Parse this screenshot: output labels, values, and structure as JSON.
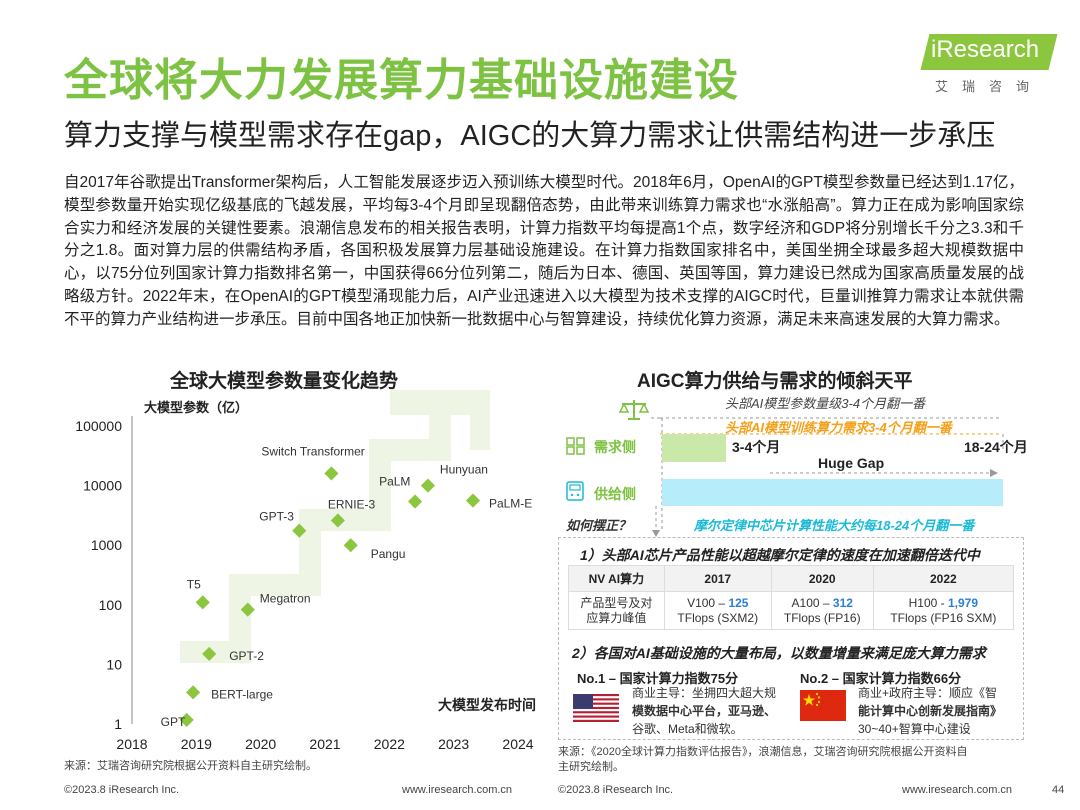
{
  "header": {
    "title": "全球将大力发展算力基础设施建设",
    "subtitle": "算力支撑与模型需求存在gap，AIGC的大算力需求让供需结构进一步承压",
    "logo_text": "iResearch",
    "logo_sub": "艾瑞咨询"
  },
  "body_text": "自2017年谷歌提出Transformer架构后，人工智能发展逐步迈入预训练大模型时代。2018年6月，OpenAI的GPT模型参数量已经达到1.17亿，模型参数量开始实现亿级基底的飞越发展，平均每3-4个月即呈现翻倍态势，由此带来训练算力需求也“水涨船高”。算力正在成为影响国家综合实力和经济发展的关键性要素。浪潮信息发布的相关报告表明，计算力指数平均每提高1个点，数字经济和GDP将分别增长千分之3.3和千分之1.8。面对算力层的供需结构矛盾，各国积极发展算力层基础设施建设。在计算力指数国家排名中，美国坐拥全球最多超大规模数据中心，以75分位列国家计算力指数排名第一，中国获得66分位列第二，随后为日本、德国、英国等国，算力建设已然成为国家高质量发展的战略级方针。2022年末，在OpenAI的GPT模型涌现能力后，AI产业迅速进入以大模型为技术支撑的AIGC时代，巨量训推算力需求让本就供需不平的算力产业结构进一步承压。目前中国各地正加快新一批数据中心与智算建设，持续优化算力资源，满足未来高速发展的大算力需求。",
  "left_chart": {
    "title": "全球大模型参数量变化趋势"
  },
  "chart_data": [
    {
      "type": "scatter",
      "title": "全球大模型参数量变化趋势",
      "ylabel": "大模型参数（亿）",
      "xlabel": "大模型发布时间",
      "y_scale": "log",
      "ylim": [
        1,
        100000
      ],
      "xlim": [
        2018,
        2024
      ],
      "x_ticks": [
        "2018",
        "2019",
        "2020",
        "2021",
        "2022",
        "2023",
        "2024"
      ],
      "y_ticks": [
        "1",
        "10",
        "100",
        "1000",
        "10000",
        "100000"
      ],
      "point_color": "#8cc63f",
      "points": [
        {
          "label": "GPT",
          "x": 2018.85,
          "y": 1.17
        },
        {
          "label": "BERT-large",
          "x": 2018.95,
          "y": 3.4
        },
        {
          "label": "T5",
          "x": 2019.1,
          "y": 110
        },
        {
          "label": "GPT-2",
          "x": 2019.2,
          "y": 15
        },
        {
          "label": "Megatron",
          "x": 2019.8,
          "y": 83
        },
        {
          "label": "GPT-3",
          "x": 2020.6,
          "y": 1750
        },
        {
          "label": "Switch Transformer",
          "x": 2021.1,
          "y": 16000
        },
        {
          "label": "ERNIE-3",
          "x": 2021.2,
          "y": 2600
        },
        {
          "label": "Pangu",
          "x": 2021.4,
          "y": 1000
        },
        {
          "label": "PaLM",
          "x": 2022.4,
          "y": 5400
        },
        {
          "label": "Hunyuan",
          "x": 2022.6,
          "y": 10000
        },
        {
          "label": "PaLM-E",
          "x": 2023.3,
          "y": 5620
        }
      ]
    },
    {
      "type": "bar",
      "title": "AIGC算力供给与需求的倾斜天平",
      "categories": [
        "需求侧",
        "供给侧"
      ],
      "annotations": [
        "3-4个月",
        "Huge Gap",
        "18-24个月"
      ]
    }
  ],
  "right_panel": {
    "title": "AIGC算力供给与需求的倾斜天平",
    "note_model_params": "头部AI模型参数量级3-4个月翻一番",
    "note_training_demand": "头部AI模型训练算力需求3-4个月翻一番",
    "demand_label": "需求侧",
    "supply_label": "供给侧",
    "demand_period": "3-4个月",
    "gap_label": "Huge Gap",
    "supply_period": "18-24个月",
    "question": "如何摆正？",
    "moore_note": "摩尔定律中芯片计算性能大约每18-24个月翻一番",
    "section1": "1）头部AI芯片产品性能以超越摩尔定律的速度在加速翻倍迭代中",
    "table": {
      "headers": [
        "NV AI算力",
        "2017",
        "2020",
        "2022"
      ],
      "row_label_1": "产品型号及对",
      "row_label_2": "应算力峰值",
      "cells": [
        {
          "model": "V100 – ",
          "value": "125",
          "unit": "TFlops (SXM2)"
        },
        {
          "model": "A100 – ",
          "value": "312",
          "unit": "TFlops (FP16)"
        },
        {
          "model": "H100 - ",
          "value": "1,979",
          "unit": "TFlops (FP16 SXM)"
        }
      ]
    },
    "section2": "2）各国对AI基础设施的大量布局，以数量增量来满足庞大算力需求",
    "usa": {
      "head": "No.1 – 国家计算力指数75分",
      "line1": "商业主导：坐拥四大超大规",
      "line2": "模数据中心平台，亚马逊、",
      "line3": "谷歌、Meta和微软。"
    },
    "china": {
      "head": "No.2 – 国家计算力指数66分",
      "line1": "商业+政府主导：顺应《智",
      "line2": "能计算中心创新发展指南》",
      "line3": "30~40+智算中心建设"
    }
  },
  "sources": {
    "left": "来源：艾瑞咨询研究院根据公开资料自主研究绘制。",
    "right_1": "来源：《2020全球计算力指数评估报告》，浪潮信息，艾瑞咨询研究院根据公开资料自",
    "right_2": "主研究绘制。"
  },
  "footer": {
    "copyright_left": "©2023.8 iResearch Inc.",
    "url_left": "www.iresearch.com.cn",
    "copyright_right": "©2023.8 iResearch Inc.",
    "url_right": "www.iresearch.com.cn",
    "page_number": "44"
  },
  "colors": {
    "brand_green": "#7dc242",
    "demand_green": "#c9e8a9",
    "supply_cyan": "#b7ecfa",
    "orange": "#f5a01a",
    "cyan": "#1bbad6",
    "blue": "#2a7fd4"
  }
}
